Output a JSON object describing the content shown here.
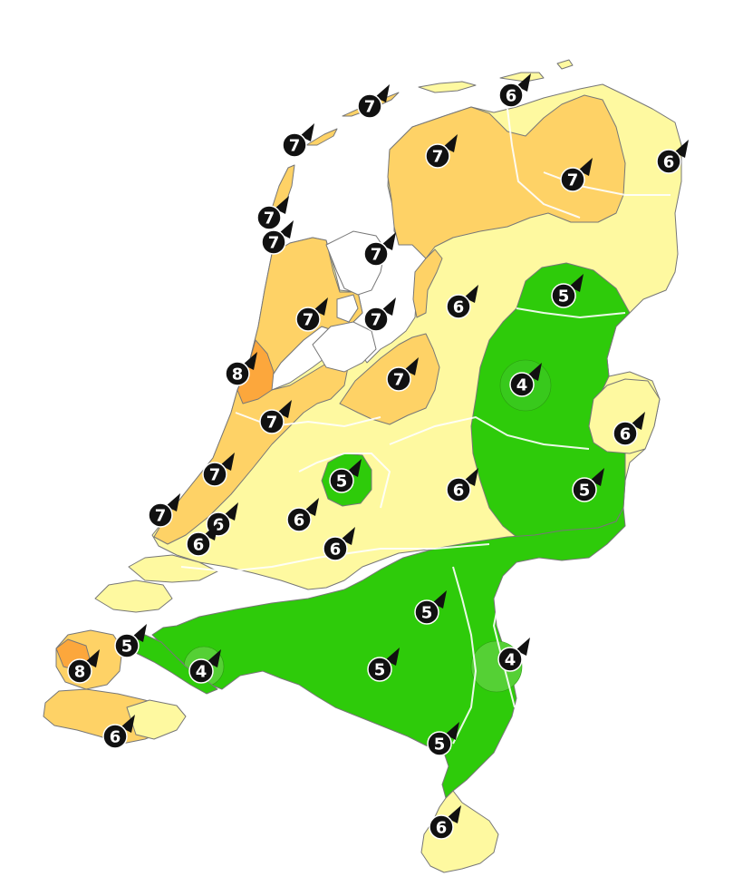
{
  "map": {
    "type": "wind-force-forecast",
    "zone_colors": {
      "force_4": "#55d035",
      "force_5": "#2ecb0a",
      "force_6": "#fef9a0",
      "force_7": "#fed266",
      "force_8": "#fca73c",
      "coast": "#777777",
      "border": "#ffffff",
      "marker_fill": "#111111",
      "marker_text": "#ffffff"
    },
    "markers": [
      {
        "id": "m1",
        "value": "7"
      },
      {
        "id": "m2",
        "value": "6"
      },
      {
        "id": "m3",
        "value": "7"
      },
      {
        "id": "m4",
        "value": "7"
      },
      {
        "id": "m5",
        "value": "7"
      },
      {
        "id": "m6",
        "value": "6"
      },
      {
        "id": "m7",
        "value": "7"
      },
      {
        "id": "m8",
        "value": "7"
      },
      {
        "id": "m9",
        "value": "7"
      },
      {
        "id": "m10",
        "value": "6"
      },
      {
        "id": "m11",
        "value": "5"
      },
      {
        "id": "m12",
        "value": "7"
      },
      {
        "id": "m13",
        "value": "7"
      },
      {
        "id": "m14",
        "value": "8"
      },
      {
        "id": "m15",
        "value": "7"
      },
      {
        "id": "m16",
        "value": "4"
      },
      {
        "id": "m17",
        "value": "7"
      },
      {
        "id": "m18",
        "value": "6"
      },
      {
        "id": "m19",
        "value": "7"
      },
      {
        "id": "m20",
        "value": "5"
      },
      {
        "id": "m21",
        "value": "5"
      },
      {
        "id": "m22",
        "value": "6"
      },
      {
        "id": "m23",
        "value": "7"
      },
      {
        "id": "m24",
        "value": "6"
      },
      {
        "id": "m25",
        "value": "6"
      },
      {
        "id": "m26",
        "value": "6"
      },
      {
        "id": "m27",
        "value": "6"
      },
      {
        "id": "m28",
        "value": "5"
      },
      {
        "id": "m29",
        "value": "5"
      },
      {
        "id": "m30",
        "value": "8"
      },
      {
        "id": "m31",
        "value": "4"
      },
      {
        "id": "m32",
        "value": "5"
      },
      {
        "id": "m33",
        "value": "4"
      },
      {
        "id": "m34",
        "value": "6"
      },
      {
        "id": "m35",
        "value": "5"
      },
      {
        "id": "m36",
        "value": "6"
      }
    ]
  }
}
